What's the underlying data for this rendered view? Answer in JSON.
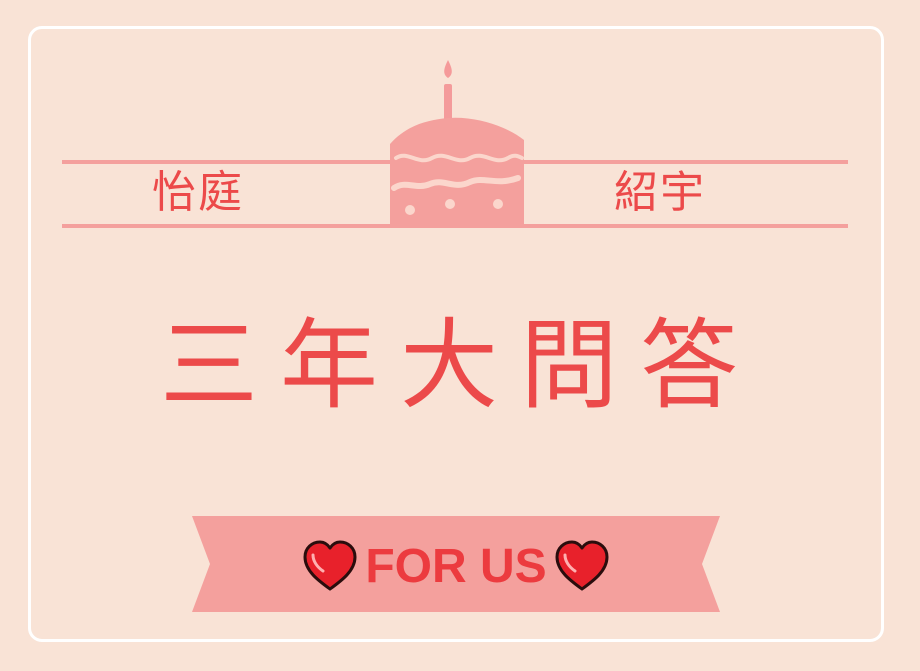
{
  "names": {
    "left": "怡庭",
    "right": "紹宇"
  },
  "title": "三年大問答",
  "ribbon": {
    "label": "FOR US"
  },
  "icons": {
    "cake": "birthday-cake-icon",
    "heart": "heart-icon"
  },
  "colors": {
    "background": "#f9e3d6",
    "accent_text": "#ec4a4a",
    "pink": "#f4a09d",
    "heart_red": "#e8212b"
  }
}
